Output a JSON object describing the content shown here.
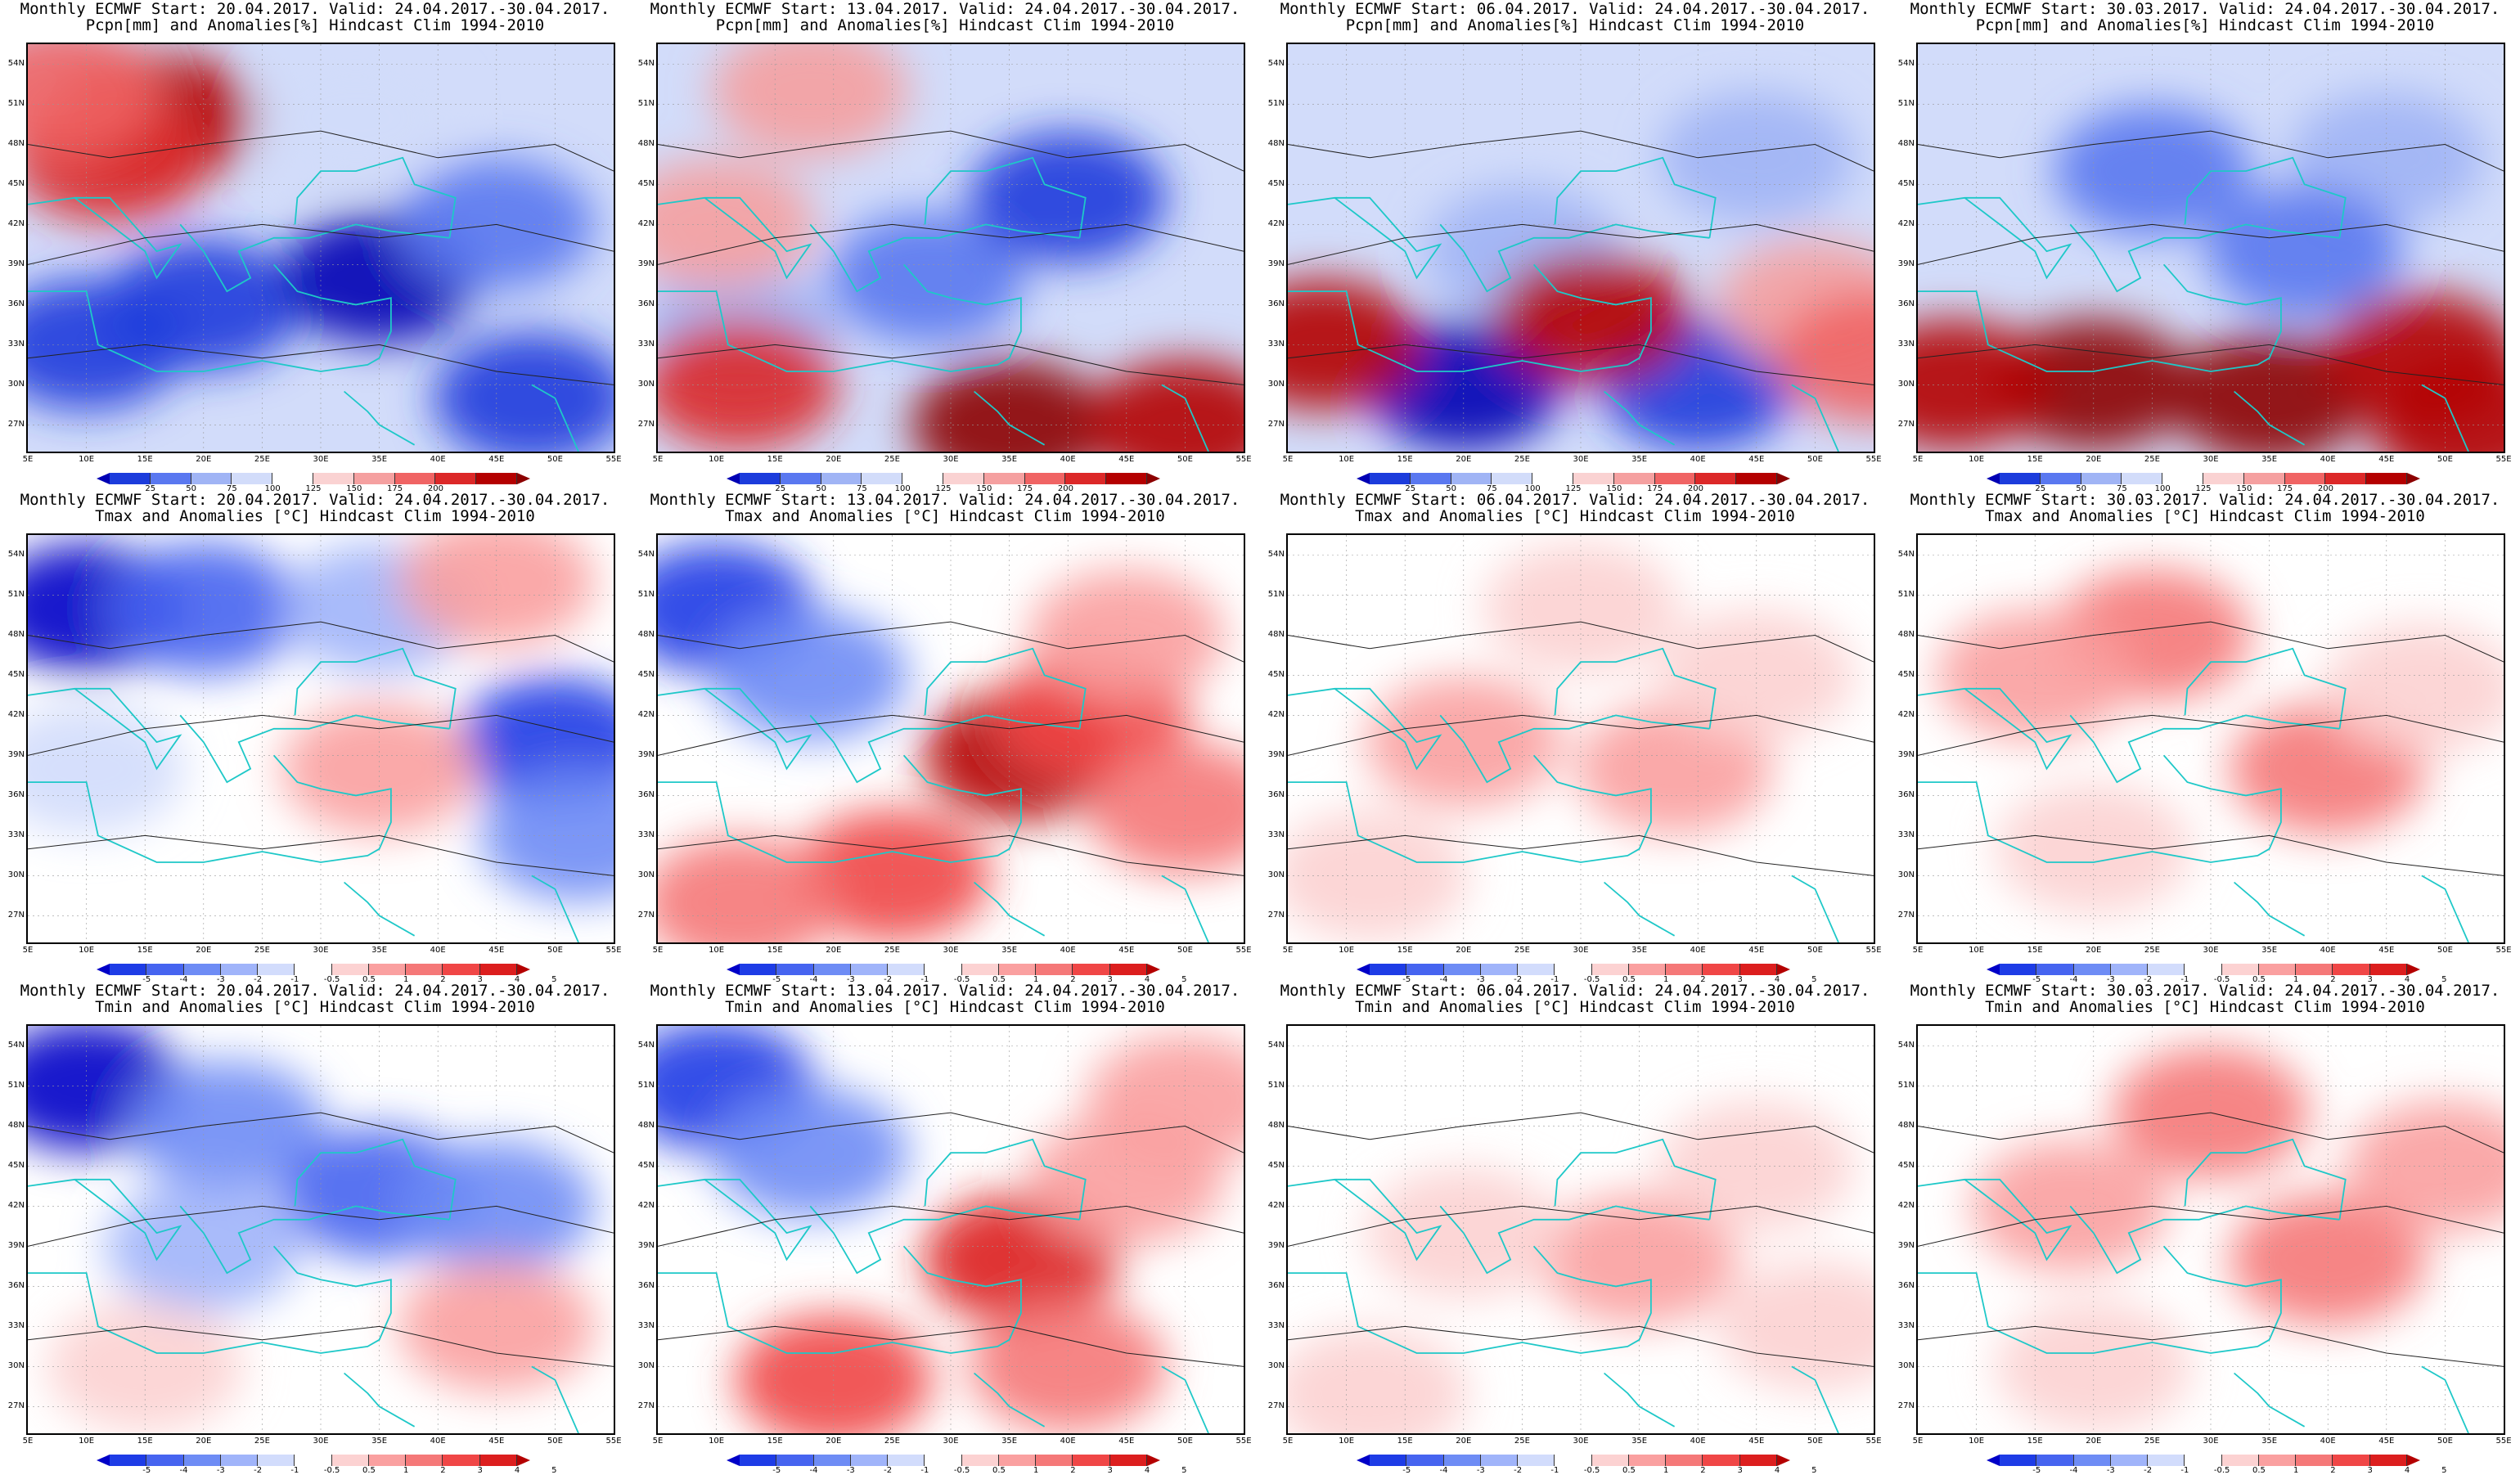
{
  "row_headers": [
    "Pcpn[mm] and Anomalies[%] Hindcast Clim 1994-2010",
    "Tmax and Anomalies [°C] Hindcast Clim 1994-2010",
    "Tmin and Anomalies [°C] Hindcast Clim 1994-2010"
  ],
  "forecasts": [
    "Monthly ECMWF Start: 20.04.2017. Valid: 24.04.2017.-30.04.2017.",
    "Monthly ECMWF Start: 13.04.2017. Valid: 24.04.2017.-30.04.2017.",
    "Monthly ECMWF Start: 06.04.2017. Valid: 24.04.2017.-30.04.2017.",
    "Monthly ECMWF Start: 30.03.2017. Valid: 24.04.2017.-30.04.2017."
  ],
  "lat_labels": [
    "54N",
    "51N",
    "48N",
    "45N",
    "42N",
    "39N",
    "36N",
    "33N",
    "30N",
    "27N"
  ],
  "lon_labels": [
    "5E",
    "10E",
    "15E",
    "20E",
    "25E",
    "30E",
    "35E",
    "40E",
    "45E",
    "50E",
    "55E"
  ],
  "pcp_scale": {
    "ticks": [
      "25",
      "50",
      "75",
      "100",
      "125",
      "150",
      "175",
      "200"
    ],
    "colors": [
      "#0000b4",
      "#1c3cdc",
      "#5a78f0",
      "#a0b4f5",
      "#d2dcfa",
      "#ffffff",
      "#fad2d2",
      "#f5a0a0",
      "#f06464",
      "#dc2828",
      "#b40000",
      "#8c0000"
    ]
  },
  "temp_scale": {
    "ticks": [
      "-5",
      "-4",
      "-3",
      "-2",
      "-1",
      "-0.5",
      "0.5",
      "1",
      "2",
      "3",
      "4",
      "5"
    ],
    "colors": [
      "#0000c8",
      "#1e3ce6",
      "#4664f0",
      "#6e8cf5",
      "#a0b4fa",
      "#d2dcfc",
      "#ffffff",
      "#fcd2d2",
      "#faa0a0",
      "#f57878",
      "#f04646",
      "#dc1e1e",
      "#b40000"
    ]
  },
  "anomaly_maps": [
    [
      {
        "variable": "pcpn",
        "blobs": [
          {
            "lon": 20,
            "lat": 36,
            "level": 1
          },
          {
            "lon": 35,
            "lat": 38,
            "level": 0
          },
          {
            "lon": 10,
            "lat": 33,
            "level": 1
          },
          {
            "lon": 45,
            "lat": 42,
            "level": 2
          },
          {
            "lon": 48,
            "lat": 29,
            "level": 1
          },
          {
            "lon": 16,
            "lat": 50,
            "level": 10
          },
          {
            "lon": 12,
            "lat": 47,
            "level": 9
          },
          {
            "lon": 8,
            "lat": 52,
            "level": 8
          },
          {
            "lon": 33,
            "lat": 50,
            "level": 4
          }
        ]
      },
      {
        "variable": "pcpn",
        "blobs": [
          {
            "lon": 28,
            "lat": 38,
            "level": 2
          },
          {
            "lon": 40,
            "lat": 44,
            "level": 1
          },
          {
            "lon": 12,
            "lat": 34,
            "level": 3
          },
          {
            "lon": 35,
            "lat": 27,
            "level": 11
          },
          {
            "lon": 50,
            "lat": 27,
            "level": 10
          },
          {
            "lon": 12,
            "lat": 30,
            "level": 9
          },
          {
            "lon": 18,
            "lat": 52,
            "level": 7
          },
          {
            "lon": 10,
            "lat": 42,
            "level": 7
          }
        ]
      },
      {
        "variable": "pcpn",
        "blobs": [
          {
            "lon": 20,
            "lat": 30,
            "level": 0
          },
          {
            "lon": 40,
            "lat": 30,
            "level": 1
          },
          {
            "lon": 25,
            "lat": 40,
            "level": 3
          },
          {
            "lon": 45,
            "lat": 47,
            "level": 3
          },
          {
            "lon": 31,
            "lat": 35,
            "level": 10
          },
          {
            "lon": 8,
            "lat": 33,
            "level": 10
          },
          {
            "lon": 50,
            "lat": 36,
            "level": 7
          },
          {
            "lon": 55,
            "lat": 32,
            "level": 8
          }
        ]
      },
      {
        "variable": "pcpn",
        "blobs": [
          {
            "lon": 25,
            "lat": 46,
            "level": 2
          },
          {
            "lon": 45,
            "lat": 47,
            "level": 3
          },
          {
            "lon": 38,
            "lat": 40,
            "level": 2
          },
          {
            "lon": 20,
            "lat": 30,
            "level": 11
          },
          {
            "lon": 35,
            "lat": 29,
            "level": 11
          },
          {
            "lon": 48,
            "lat": 32,
            "level": 10
          },
          {
            "lon": 8,
            "lat": 30,
            "level": 10
          },
          {
            "lon": 52,
            "lat": 27,
            "level": 10
          }
        ]
      }
    ],
    [
      {
        "variable": "tmax",
        "blobs": [
          {
            "lon": 10,
            "lat": 50,
            "level": 0
          },
          {
            "lon": 20,
            "lat": 50,
            "level": 2
          },
          {
            "lon": 35,
            "lat": 50,
            "level": 4
          },
          {
            "lon": 50,
            "lat": 40,
            "level": 1
          },
          {
            "lon": 52,
            "lat": 33,
            "level": 3
          },
          {
            "lon": 10,
            "lat": 38,
            "level": 5
          },
          {
            "lon": 35,
            "lat": 38,
            "level": 8
          },
          {
            "lon": 45,
            "lat": 52,
            "level": 8
          }
        ]
      },
      {
        "variable": "tmax",
        "blobs": [
          {
            "lon": 10,
            "lat": 50,
            "level": 1
          },
          {
            "lon": 18,
            "lat": 45,
            "level": 3
          },
          {
            "lon": 36,
            "lat": 39,
            "level": 12
          },
          {
            "lon": 42,
            "lat": 42,
            "level": 10
          },
          {
            "lon": 25,
            "lat": 30,
            "level": 10
          },
          {
            "lon": 12,
            "lat": 28,
            "level": 9
          },
          {
            "lon": 45,
            "lat": 48,
            "level": 8
          },
          {
            "lon": 50,
            "lat": 35,
            "level": 9
          }
        ]
      },
      {
        "variable": "tmax",
        "blobs": [
          {
            "lon": 20,
            "lat": 40,
            "level": 8
          },
          {
            "lon": 38,
            "lat": 38,
            "level": 8
          },
          {
            "lon": 30,
            "lat": 50,
            "level": 7
          },
          {
            "lon": 45,
            "lat": 45,
            "level": 7
          },
          {
            "lon": 12,
            "lat": 30,
            "level": 7
          }
        ]
      },
      {
        "variable": "tmax",
        "blobs": [
          {
            "lon": 25,
            "lat": 48,
            "level": 9
          },
          {
            "lon": 40,
            "lat": 38,
            "level": 9
          },
          {
            "lon": 15,
            "lat": 45,
            "level": 8
          },
          {
            "lon": 48,
            "lat": 44,
            "level": 7
          },
          {
            "lon": 20,
            "lat": 32,
            "level": 7
          }
        ]
      }
    ],
    [
      {
        "variable": "tmin",
        "blobs": [
          {
            "lon": 10,
            "lat": 51,
            "level": 0
          },
          {
            "lon": 22,
            "lat": 48,
            "level": 3
          },
          {
            "lon": 35,
            "lat": 43,
            "level": 2
          },
          {
            "lon": 45,
            "lat": 42,
            "level": 3
          },
          {
            "lon": 20,
            "lat": 39,
            "level": 4
          },
          {
            "lon": 45,
            "lat": 33,
            "level": 8
          },
          {
            "lon": 15,
            "lat": 30,
            "level": 7
          }
        ]
      },
      {
        "variable": "tmin",
        "blobs": [
          {
            "lon": 10,
            "lat": 51,
            "level": 1
          },
          {
            "lon": 18,
            "lat": 46,
            "level": 3
          },
          {
            "lon": 36,
            "lat": 38,
            "level": 11
          },
          {
            "lon": 20,
            "lat": 29,
            "level": 10
          },
          {
            "lon": 40,
            "lat": 30,
            "level": 9
          },
          {
            "lon": 45,
            "lat": 44,
            "level": 8
          },
          {
            "lon": 50,
            "lat": 50,
            "level": 8
          }
        ]
      },
      {
        "variable": "tmin",
        "blobs": [
          {
            "lon": 35,
            "lat": 38,
            "level": 8
          },
          {
            "lon": 20,
            "lat": 40,
            "level": 7
          },
          {
            "lon": 45,
            "lat": 45,
            "level": 7
          },
          {
            "lon": 12,
            "lat": 28,
            "level": 7
          },
          {
            "lon": 50,
            "lat": 33,
            "level": 7
          }
        ]
      },
      {
        "variable": "tmin",
        "blobs": [
          {
            "lon": 30,
            "lat": 49,
            "level": 9
          },
          {
            "lon": 40,
            "lat": 38,
            "level": 9
          },
          {
            "lon": 18,
            "lat": 42,
            "level": 8
          },
          {
            "lon": 50,
            "lat": 45,
            "level": 8
          },
          {
            "lon": 20,
            "lat": 30,
            "level": 7
          }
        ]
      }
    ]
  ]
}
